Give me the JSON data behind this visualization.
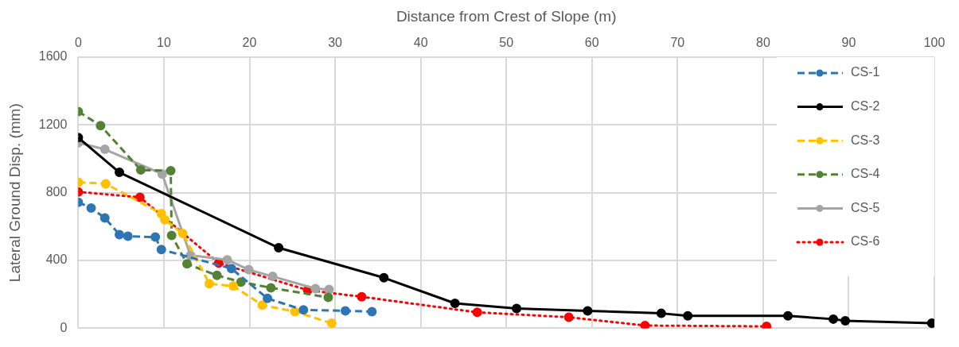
{
  "chart_data": {
    "type": "line",
    "xlabel": "Distance from Crest of Slope (m)",
    "ylabel": "Lateral Ground Disp. (mm)",
    "xlim": [
      0,
      100
    ],
    "xticks": [
      0,
      10,
      20,
      30,
      40,
      50,
      60,
      70,
      80,
      90,
      100
    ],
    "ylim": [
      0,
      1600
    ],
    "yticks": [
      0,
      400,
      800,
      1200,
      1600
    ],
    "grid": true,
    "legend": "top right",
    "marker": "circle",
    "series": [
      {
        "name": "CS-1",
        "color": "#2e75b6",
        "line_style": "dashed",
        "x": [
          0,
          1.5,
          3.1,
          4.8,
          5.8,
          9.0,
          9.7,
          17.9,
          22.1,
          26.3,
          31.2,
          34.3
        ],
        "values": [
          744,
          710,
          651,
          553,
          543,
          538,
          465,
          352,
          176,
          108,
          103,
          98
        ]
      },
      {
        "name": "CS-2",
        "color": "#000000",
        "line_style": "solid",
        "x": [
          0,
          4.8,
          23.4,
          35.7,
          44.0,
          51.2,
          59.5,
          68.1,
          71.2,
          82.9,
          88.2,
          89.6,
          99.7
        ],
        "values": [
          1125,
          920,
          475,
          298,
          147,
          117,
          103,
          88,
          73,
          73,
          54,
          44,
          30
        ]
      },
      {
        "name": "CS-3",
        "color": "#ffc000",
        "line_style": "dashed",
        "x": [
          0,
          3.2,
          9.7,
          10.1,
          12.2,
          15.3,
          18.1,
          21.5,
          25.3,
          29.6
        ],
        "values": [
          862,
          853,
          677,
          640,
          560,
          263,
          249,
          137,
          98,
          30
        ]
      },
      {
        "name": "CS-4",
        "color": "#548235",
        "line_style": "dashed",
        "x": [
          0,
          2.6,
          7.3,
          10.8,
          10.9,
          12.7,
          16.2,
          19.0,
          22.5,
          29.2
        ],
        "values": [
          1279,
          1196,
          934,
          930,
          548,
          380,
          312,
          273,
          239,
          182
        ]
      },
      {
        "name": "CS-5",
        "color": "#a5a5a5",
        "line_style": "solid",
        "x": [
          0,
          3.1,
          9.8,
          13.1,
          17.4,
          19.9,
          22.7,
          27.7,
          29.3
        ],
        "values": [
          1095,
          1056,
          910,
          431,
          404,
          346,
          306,
          234,
          229
        ]
      },
      {
        "name": "CS-6",
        "color": "#ff0000",
        "line_style": "dotted",
        "x": [
          0,
          7.2,
          16.4,
          26.8,
          33.1,
          46.6,
          57.3,
          66.2,
          80.4
        ],
        "values": [
          805,
          773,
          385,
          225,
          186,
          94,
          65,
          16,
          11
        ]
      }
    ]
  }
}
